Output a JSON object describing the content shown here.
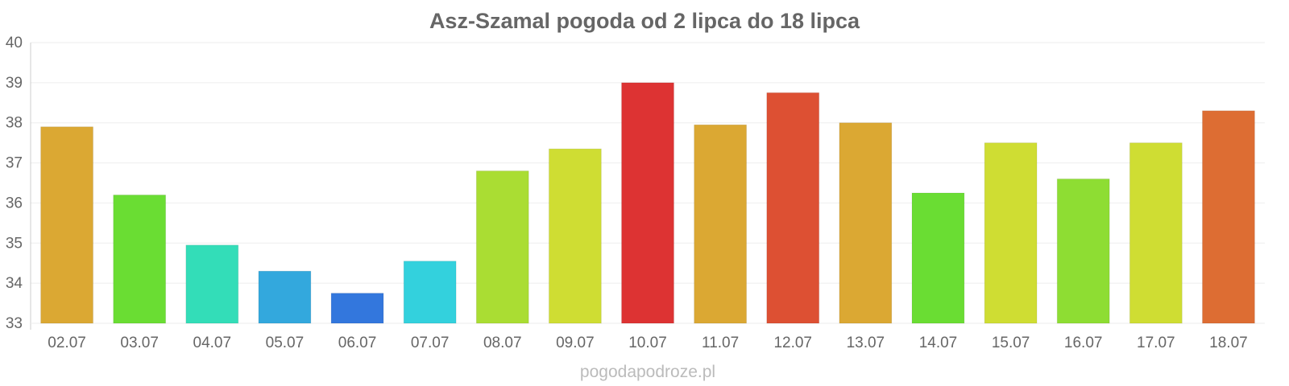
{
  "chart_data": {
    "type": "bar",
    "title": "Asz-Szamal pogoda od 2 lipca do 18 lipca",
    "xlabel": "",
    "ylabel": "",
    "ylim": [
      33,
      40
    ],
    "yticks": [
      "33",
      "34",
      "35",
      "36",
      "37",
      "38",
      "39",
      "40"
    ],
    "grid": true,
    "categories": [
      "02.07",
      "03.07",
      "04.07",
      "05.07",
      "06.07",
      "07.07",
      "08.07",
      "09.07",
      "10.07",
      "11.07",
      "12.07",
      "13.07",
      "14.07",
      "15.07",
      "16.07",
      "17.07",
      "18.07"
    ],
    "values": [
      37.9,
      36.2,
      34.95,
      34.3,
      33.75,
      34.55,
      36.8,
      37.35,
      39.0,
      37.95,
      38.75,
      38.0,
      36.25,
      37.5,
      36.6,
      37.5,
      38.3
    ],
    "colors": [
      "#dba833",
      "#6add33",
      "#33ddb8",
      "#33a8dd",
      "#3377dd",
      "#33d1dd",
      "#aadd33",
      "#cfdd33",
      "#dd3333",
      "#dba833",
      "#dd5033",
      "#dba833",
      "#6add33",
      "#cfdd33",
      "#8edd33",
      "#cfdd33",
      "#dd6d33"
    ]
  },
  "watermark": "pogodapodroze.pl"
}
